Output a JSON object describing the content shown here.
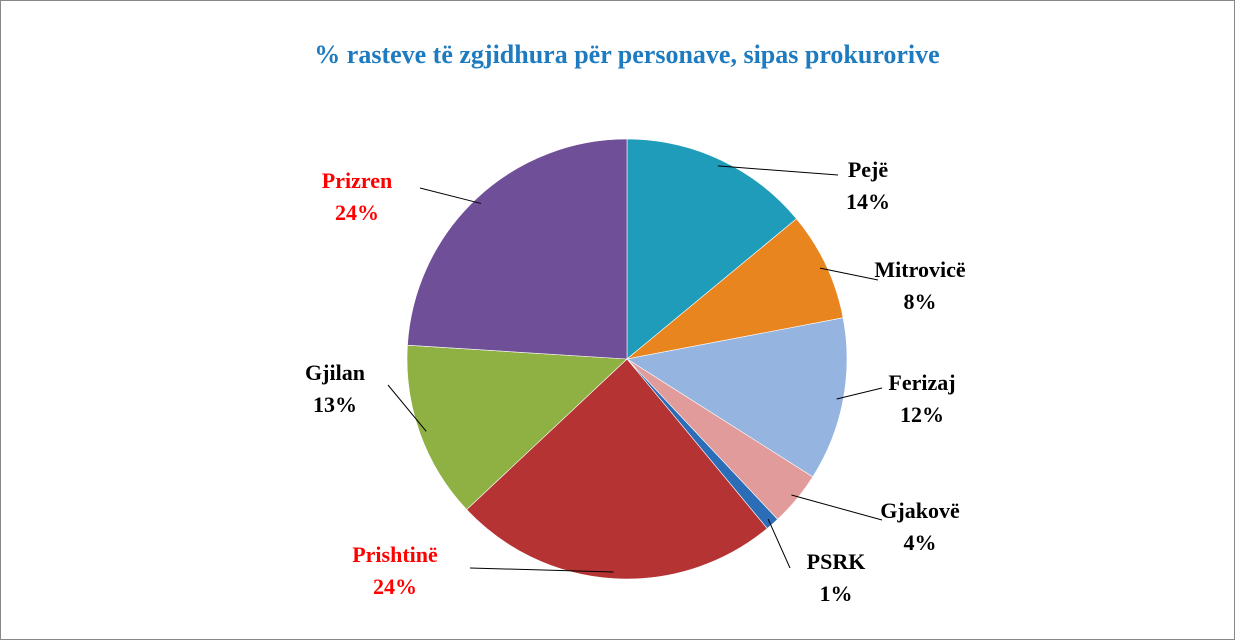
{
  "chart_data": {
    "type": "pie",
    "title": "% rasteve të zgjidhura për personave, sipas prokurorive",
    "categories": [
      "Pejë",
      "Mitrovicë",
      "Ferizaj",
      "Gjakovë",
      "PSRK",
      "Prishtinë",
      "Gjilan",
      "Prizren"
    ],
    "values": [
      14,
      8,
      12,
      4,
      1,
      24,
      13,
      24
    ],
    "value_labels": [
      "14%",
      "8%",
      "12%",
      "4%",
      "1%",
      "24%",
      "13%",
      "24%"
    ],
    "colors": [
      "#1f9cb9",
      "#e8851f",
      "#95b4e0",
      "#e19b9a",
      "#2b6db6",
      "#b53333",
      "#8fb042",
      "#6f4f97"
    ],
    "label_colors": [
      "#000000",
      "#000000",
      "#000000",
      "#000000",
      "#000000",
      "#ff0000",
      "#000000",
      "#ff0000"
    ]
  }
}
